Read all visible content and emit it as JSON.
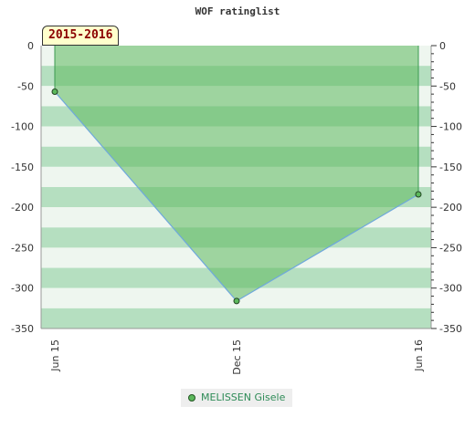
{
  "title": "WOF ratinglist",
  "period_label": "2015-2016",
  "chart_data": {
    "type": "area",
    "title": "WOF ratinglist",
    "categories": [
      "Jun 15",
      "Dec 15",
      "Jun 16"
    ],
    "series": [
      {
        "name": "MELISSEN Gisele",
        "values": [
          -57,
          -316,
          -184
        ]
      }
    ],
    "ylim": [
      -350,
      0
    ],
    "yticks": [
      0,
      -50,
      -100,
      -150,
      -200,
      -250,
      -300,
      -350
    ],
    "grid": true,
    "legend_position": "bottom",
    "colors": {
      "fill": "#5cb85c",
      "line": "#6fa8dc",
      "marker": "#5cb85c",
      "band_light": "#eef6ef",
      "band_dark": "#b5dfc0"
    }
  }
}
